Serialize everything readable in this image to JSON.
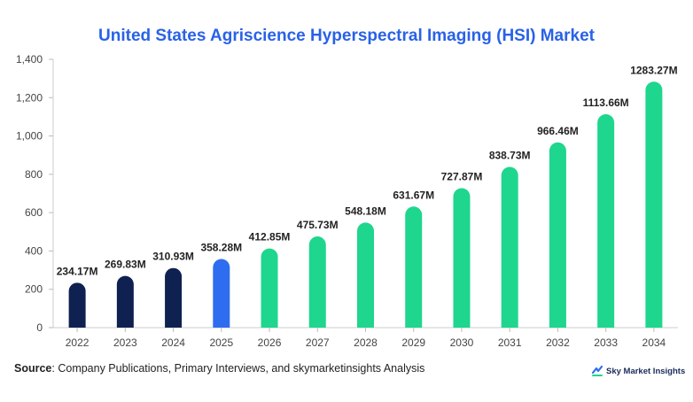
{
  "title": "United States Agriscience Hyperspectral Imaging (HSI) Market",
  "footer": {
    "source_label": "Source",
    "source_text": ": Company Publications, Primary Interviews, and skymarketinsights Analysis"
  },
  "brand": {
    "name": "Sky Market Insights",
    "icon": "sky-market-insights-logo-icon"
  },
  "colors": {
    "historical": "#0f2150",
    "base_year": "#2e6df0",
    "forecast": "#1ed68d",
    "title": "#2962e8",
    "grid": "#e6e6e6"
  },
  "chart_data": {
    "type": "bar",
    "title": "United States Agriscience Hyperspectral Imaging (HSI) Market",
    "xlabel": "",
    "ylabel": "",
    "ylim": [
      0,
      1400
    ],
    "yticks": [
      0,
      200,
      400,
      600,
      800,
      1000,
      1200,
      1400
    ],
    "ytick_labels": [
      "0",
      "200",
      "400",
      "600",
      "800",
      "1,000",
      "1,200",
      "1,400"
    ],
    "grid": false,
    "categories": [
      "2022",
      "2023",
      "2024",
      "2025",
      "2026",
      "2027",
      "2028",
      "2029",
      "2030",
      "2031",
      "2032",
      "2033",
      "2034"
    ],
    "values": [
      234.17,
      269.83,
      310.93,
      358.28,
      412.85,
      475.73,
      548.18,
      631.67,
      727.87,
      838.73,
      966.46,
      1113.66,
      1283.27
    ],
    "data_labels": [
      "234.17M",
      "269.83M",
      "310.93M",
      "358.28M",
      "412.85M",
      "475.73M",
      "548.18M",
      "631.67M",
      "727.87M",
      "838.73M",
      "966.46M",
      "1113.66M",
      "1283.27M"
    ],
    "bar_groups": [
      "historical",
      "historical",
      "historical",
      "base_year",
      "forecast",
      "forecast",
      "forecast",
      "forecast",
      "forecast",
      "forecast",
      "forecast",
      "forecast",
      "forecast"
    ]
  }
}
